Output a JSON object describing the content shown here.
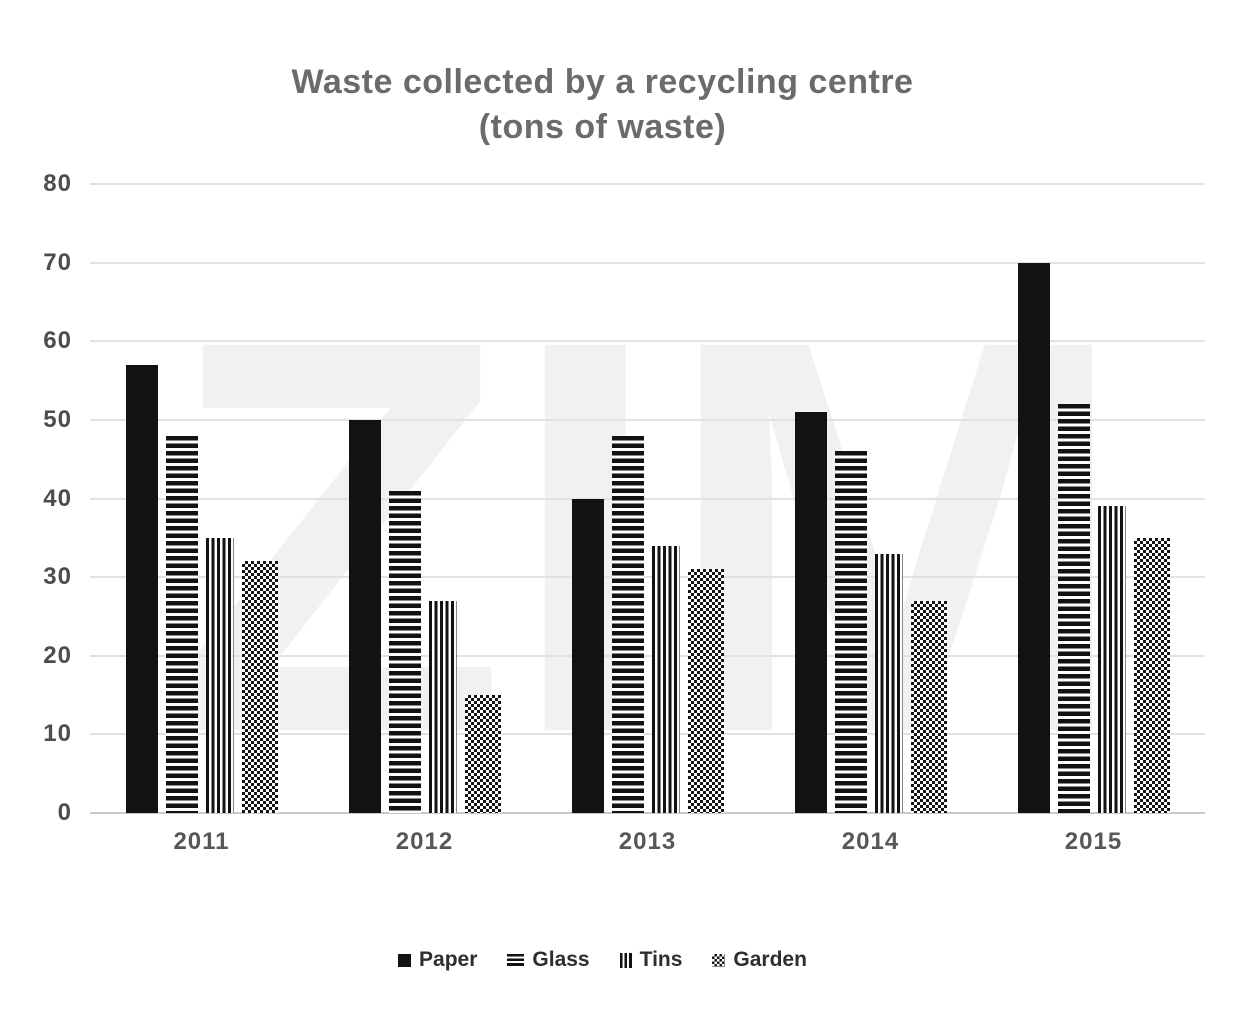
{
  "title": {
    "line1": "Waste collected by a recycling centre",
    "line2": "(tons of waste)"
  },
  "watermark": "ZIM",
  "chart_data": {
    "type": "bar",
    "title": "Waste collected by a recycling centre (tons of waste)",
    "categories": [
      "2011",
      "2012",
      "2013",
      "2014",
      "2015"
    ],
    "series": [
      {
        "name": "Paper",
        "pattern": "solid",
        "values": [
          57,
          50,
          40,
          51,
          70
        ]
      },
      {
        "name": "Glass",
        "pattern": "horizontal-stripes",
        "values": [
          48,
          41,
          48,
          46,
          52
        ]
      },
      {
        "name": "Tins",
        "pattern": "vertical-stripes",
        "values": [
          35,
          27,
          34,
          33,
          39
        ]
      },
      {
        "name": "Garden",
        "pattern": "dots",
        "values": [
          32,
          15,
          31,
          27,
          35
        ]
      }
    ],
    "xlabel": "",
    "ylabel": "",
    "ylim": [
      0,
      80
    ],
    "yticks": [
      0,
      10,
      20,
      30,
      40,
      50,
      60,
      70,
      80
    ],
    "grid": true,
    "legend_position": "bottom"
  },
  "colors": {
    "bar_ink": "#121212",
    "title_text": "#6b6b6b",
    "axis_text": "#4d4d4d",
    "legend_text": "#2e2e2e",
    "gridline": "#e2e2e2",
    "baseline": "#c9c9c9",
    "watermark": "#f1f1f1",
    "background": "#ffffff"
  }
}
